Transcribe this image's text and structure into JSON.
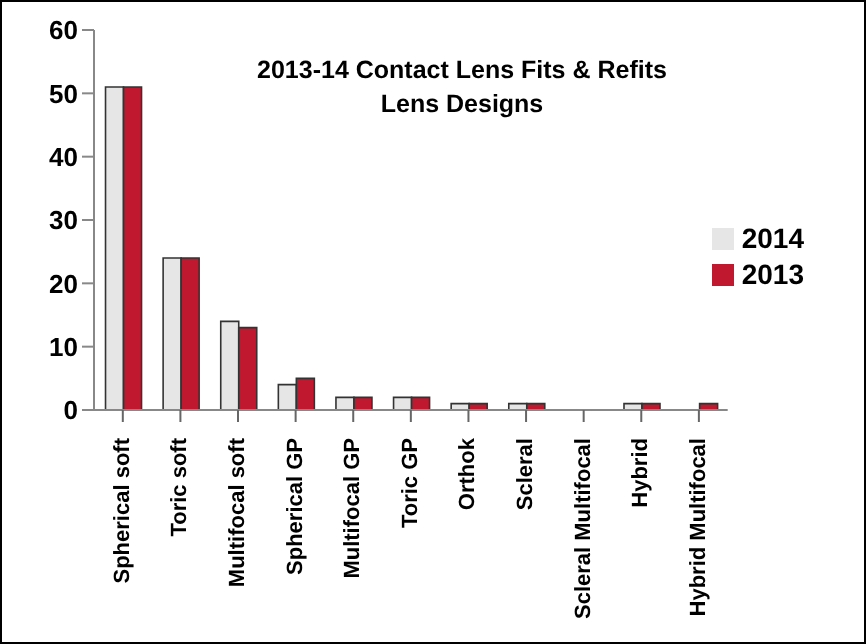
{
  "chart_data": {
    "type": "bar",
    "title": "2013-14 Contact Lens Fits & Refits",
    "subtitle": "Lens Designs",
    "categories": [
      "Spherical soft",
      "Toric soft",
      "Multifocal soft",
      "Spherical GP",
      "Multifocal GP",
      "Toric GP",
      "Orthok",
      "Scleral",
      "Scleral Multifocal",
      "Hybrid",
      "Hybrid Multifocal"
    ],
    "series": [
      {
        "name": "2014",
        "color": "#e6e6e6",
        "values": [
          51,
          24,
          14,
          4,
          2,
          2,
          1,
          1,
          0,
          1,
          0
        ]
      },
      {
        "name": "2013",
        "color": "#c0192f",
        "values": [
          51,
          24,
          13,
          5,
          2,
          2,
          1,
          1,
          0,
          1,
          1
        ]
      }
    ],
    "ylim": [
      0,
      60
    ],
    "yticks": [
      0,
      10,
      20,
      30,
      40,
      50,
      60
    ],
    "legend": "right"
  }
}
